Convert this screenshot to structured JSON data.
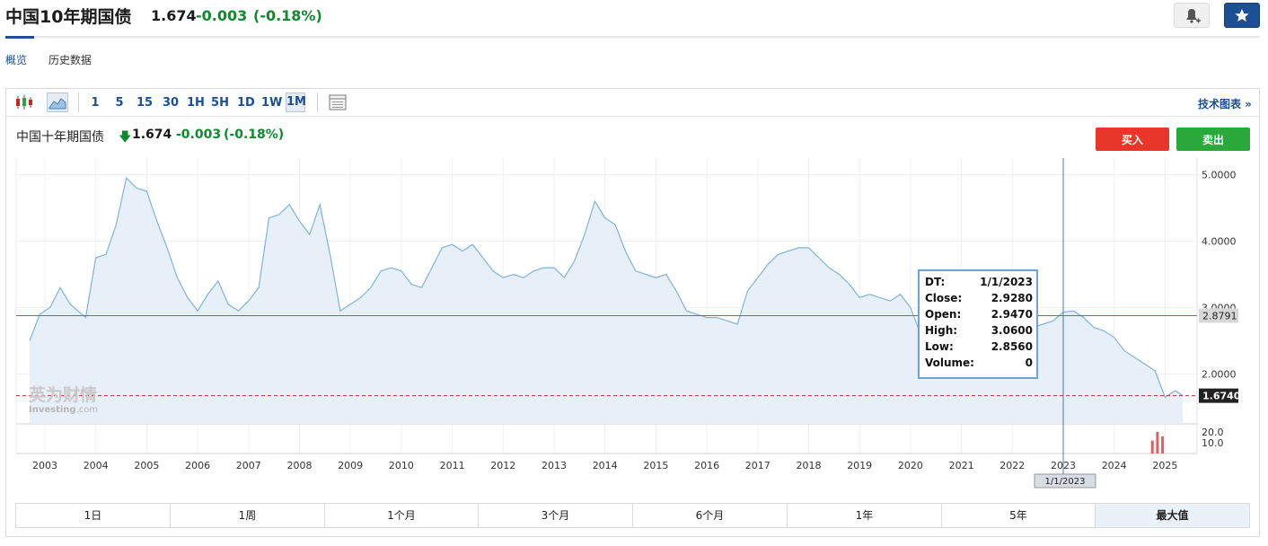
{
  "header": {
    "title": "中国10年期国债",
    "price": "1.674",
    "change": "-0.003",
    "change_pct": "(-0.18%)",
    "alert_icon": "bell-plus-icon",
    "watch_icon": "star-icon"
  },
  "tabs": [
    {
      "label": "概览",
      "active": true
    },
    {
      "label": "历史数据",
      "active": false
    }
  ],
  "toolbar": {
    "chart_icons": [
      "candlestick-icon",
      "area-chart-icon"
    ],
    "intervals": [
      "1",
      "5",
      "15",
      "30",
      "1H",
      "5H",
      "1D",
      "1W",
      "1M"
    ],
    "selected_interval": "1M",
    "layout_icon": "table-icon",
    "advanced_label": "技术图表 »"
  },
  "instrument": {
    "name": "中国十年期国债",
    "arrow": "🡇",
    "price": "1.674",
    "change": "-0.003",
    "change_pct": "(-0.18%)"
  },
  "actions": {
    "buy": "买入",
    "sell": "卖出"
  },
  "watermark": {
    "cn": "英为财情",
    "en": "Investing",
    "suffix": ".com"
  },
  "tooltip": [
    {
      "k": "DT:",
      "v": "1/1/2023"
    },
    {
      "k": "Close:",
      "v": "2.9280"
    },
    {
      "k": "Open:",
      "v": "2.9470"
    },
    {
      "k": "High:",
      "v": "3.0600"
    },
    {
      "k": "Low:",
      "v": "2.8560"
    },
    {
      "k": "Volume:",
      "v": "0"
    }
  ],
  "crosshair": {
    "x_label": "1/1/2023",
    "y_label": "2.8791"
  },
  "last_price_label": "1.6740",
  "colors": {
    "line": "#7fb3db",
    "fill": "#e7f0f8",
    "up": "#0e8a2e",
    "accent": "#1c4f94",
    "buy": "#e8362a",
    "sell": "#2aa83a",
    "last": "#c62828"
  },
  "chart_data": {
    "type": "area",
    "x_unit": "year",
    "x": [
      2002.7,
      2002.9,
      2003.1,
      2003.3,
      2003.5,
      2003.8,
      2004.0,
      2004.2,
      2004.4,
      2004.6,
      2004.8,
      2005.0,
      2005.2,
      2005.4,
      2005.6,
      2005.8,
      2006.0,
      2006.2,
      2006.4,
      2006.6,
      2006.8,
      2007.0,
      2007.2,
      2007.4,
      2007.6,
      2007.8,
      2008.0,
      2008.2,
      2008.4,
      2008.6,
      2008.8,
      2009.0,
      2009.2,
      2009.4,
      2009.6,
      2009.8,
      2010.0,
      2010.2,
      2010.4,
      2010.6,
      2010.8,
      2011.0,
      2011.2,
      2011.4,
      2011.6,
      2011.8,
      2012.0,
      2012.2,
      2012.4,
      2012.6,
      2012.8,
      2013.0,
      2013.2,
      2013.4,
      2013.6,
      2013.8,
      2014.0,
      2014.2,
      2014.4,
      2014.6,
      2014.8,
      2015.0,
      2015.2,
      2015.4,
      2015.6,
      2015.8,
      2016.0,
      2016.2,
      2016.4,
      2016.6,
      2016.8,
      2017.0,
      2017.2,
      2017.4,
      2017.6,
      2017.8,
      2018.0,
      2018.2,
      2018.4,
      2018.6,
      2018.8,
      2019.0,
      2019.2,
      2019.4,
      2019.6,
      2019.8,
      2020.0,
      2020.2,
      2020.4,
      2020.6,
      2020.8,
      2021.0,
      2021.2,
      2021.4,
      2021.6,
      2021.8,
      2022.0,
      2022.2,
      2022.4,
      2022.6,
      2022.8,
      2023.0,
      2023.2,
      2023.4,
      2023.6,
      2023.8,
      2024.0,
      2024.2,
      2024.4,
      2024.6,
      2024.8,
      2025.0,
      2025.2,
      2025.35
    ],
    "y": [
      2.5,
      2.9,
      3.0,
      3.3,
      3.05,
      2.85,
      3.75,
      3.8,
      4.25,
      4.95,
      4.8,
      4.75,
      4.3,
      3.9,
      3.45,
      3.15,
      2.95,
      3.2,
      3.4,
      3.05,
      2.95,
      3.1,
      3.3,
      4.35,
      4.4,
      4.55,
      4.3,
      4.1,
      4.55,
      3.8,
      2.95,
      3.05,
      3.15,
      3.3,
      3.55,
      3.6,
      3.55,
      3.35,
      3.3,
      3.6,
      3.9,
      3.95,
      3.85,
      3.95,
      3.75,
      3.55,
      3.45,
      3.5,
      3.45,
      3.55,
      3.6,
      3.6,
      3.45,
      3.7,
      4.1,
      4.6,
      4.35,
      4.25,
      3.85,
      3.55,
      3.5,
      3.45,
      3.5,
      3.25,
      2.95,
      2.9,
      2.85,
      2.85,
      2.8,
      2.75,
      3.25,
      3.45,
      3.65,
      3.8,
      3.85,
      3.9,
      3.9,
      3.75,
      3.6,
      3.5,
      3.35,
      3.15,
      3.2,
      3.15,
      3.1,
      3.2,
      3.0,
      2.6,
      2.6,
      2.85,
      3.15,
      3.2,
      3.15,
      3.05,
      2.95,
      2.9,
      2.8,
      2.75,
      2.7,
      2.75,
      2.8,
      2.93,
      2.95,
      2.85,
      2.7,
      2.65,
      2.55,
      2.35,
      2.25,
      2.15,
      2.05,
      1.65,
      1.75,
      1.674
    ],
    "ylim": [
      1.25,
      5.25
    ],
    "y_ticks": [
      "5.0000",
      "4.0000",
      "3.0000",
      "2.0000"
    ],
    "x_ticks": [
      "2003",
      "2004",
      "2005",
      "2006",
      "2007",
      "2008",
      "2009",
      "2010",
      "2011",
      "2012",
      "2013",
      "2014",
      "2015",
      "2016",
      "2017",
      "2018",
      "2019",
      "2020",
      "2021",
      "2022",
      "2023",
      "2024",
      "2025"
    ],
    "volume_ticks": [
      "20.0",
      "10.0"
    ],
    "volume": [
      {
        "x": 2024.75,
        "v": 12
      },
      {
        "x": 2024.85,
        "v": 20
      },
      {
        "x": 2024.95,
        "v": 16
      }
    ]
  },
  "time_ranges": [
    "1日",
    "1周",
    "1个月",
    "3个月",
    "6个月",
    "1年",
    "5年",
    "最大值"
  ],
  "selected_range": "最大值"
}
